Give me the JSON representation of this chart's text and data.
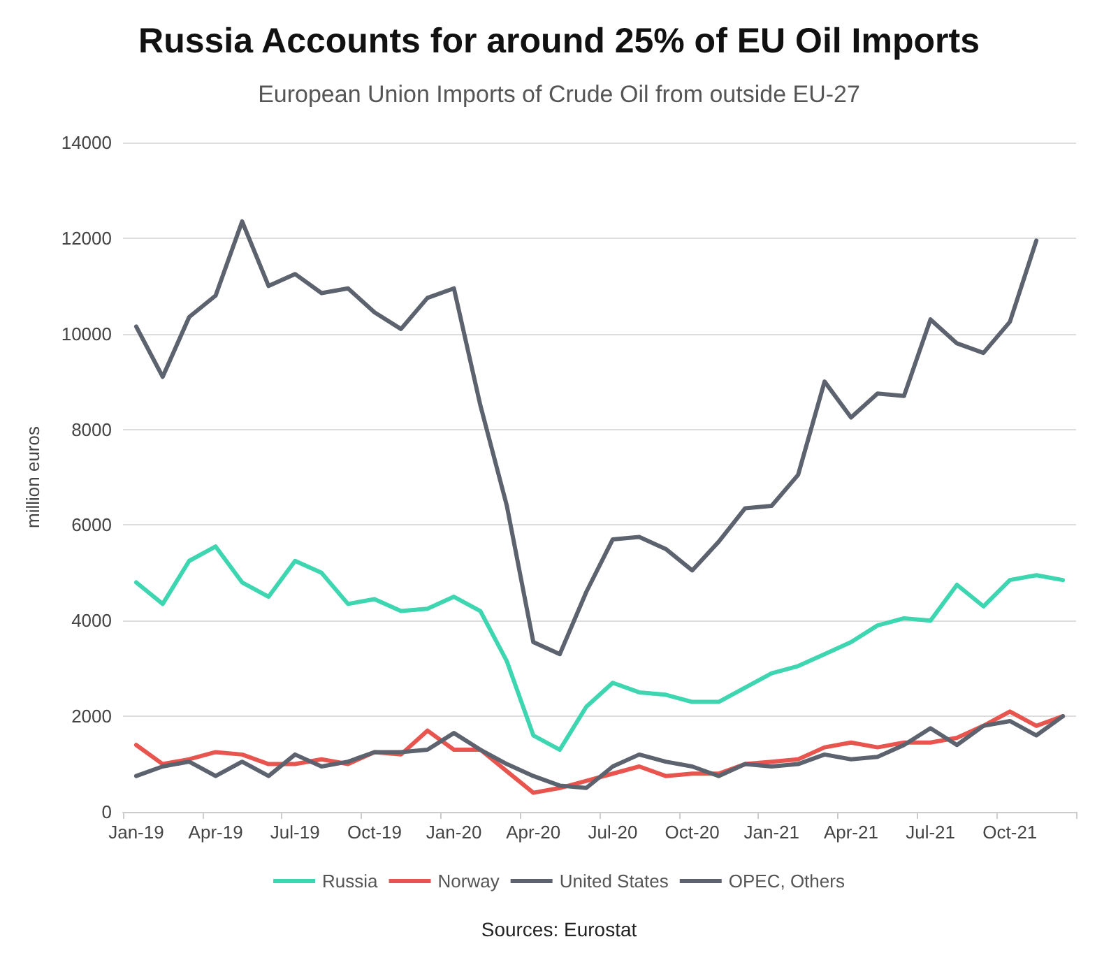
{
  "chart_data": {
    "type": "line",
    "title": "Russia Accounts for around 25% of EU Oil Imports",
    "subtitle": "European Union Imports of Crude Oil from outside EU-27",
    "ylabel": "million euros",
    "annotations": [
      "Sources: Eurostat"
    ],
    "categories": [
      "Jan-19",
      null,
      null,
      "Apr-19",
      null,
      null,
      "Jul-19",
      null,
      null,
      "Oct-19",
      null,
      null,
      "Jan-20",
      null,
      null,
      "Apr-20",
      null,
      null,
      "Jul-20",
      null,
      null,
      "Oct-20",
      null,
      null,
      "Jan-21",
      null,
      null,
      "Apr-21",
      null,
      null,
      "Jul-21",
      null,
      null,
      "Oct-21",
      null,
      null
    ],
    "series": [
      {
        "name": "Russia",
        "color": "#3dd6b0",
        "values": [
          4800,
          4350,
          5250,
          5550,
          4800,
          4500,
          5250,
          5000,
          4350,
          4450,
          4200,
          4250,
          4500,
          4200,
          3150,
          1600,
          1300,
          2200,
          2700,
          2500,
          2450,
          2300,
          2300,
          2600,
          2900,
          3050,
          3300,
          3550,
          3900,
          4050,
          4000,
          4750,
          4300,
          4850,
          4950,
          4850
        ]
      },
      {
        "name": "Norway",
        "color": "#e8544e",
        "values": [
          1400,
          1000,
          1100,
          1250,
          1200,
          1000,
          1000,
          1100,
          1000,
          1250,
          1200,
          1700,
          1300,
          1300,
          850,
          400,
          500,
          650,
          800,
          950,
          750,
          800,
          800,
          1000,
          1050,
          1100,
          1350,
          1450,
          1350,
          1450,
          1450,
          1550,
          1800,
          2100,
          1800,
          2000
        ]
      },
      {
        "name": "United States",
        "color": "#5c636e",
        "values": [
          750,
          950,
          1050,
          750,
          1050,
          750,
          1200,
          950,
          1050,
          1250,
          1250,
          1300,
          1650,
          1300,
          1000,
          750,
          550,
          500,
          950,
          1200,
          1050,
          950,
          750,
          1000,
          950,
          1000,
          1200,
          1100,
          1150,
          1400,
          1750,
          1400,
          1800,
          1900,
          1600,
          2000
        ]
      },
      {
        "name": "OPEC, Others",
        "color": "#5c636e",
        "values": [
          10150,
          9100,
          10350,
          10800,
          12350,
          11000,
          11250,
          10850,
          10950,
          10450,
          10100,
          10750,
          10950,
          8500,
          6400,
          3550,
          3300,
          4600,
          5700,
          5750,
          5500,
          5050,
          5650,
          6350,
          6400,
          7050,
          9000,
          8250,
          8750,
          8700,
          10300,
          9800,
          9600,
          10250,
          11950,
          null
        ]
      }
    ],
    "ylim": [
      0,
      14000
    ],
    "yticks": [
      0,
      2000,
      4000,
      6000,
      8000,
      10000,
      12000,
      14000
    ],
    "grid": "y",
    "legend": "bottom",
    "marker": "none",
    "line_style": "solid"
  }
}
